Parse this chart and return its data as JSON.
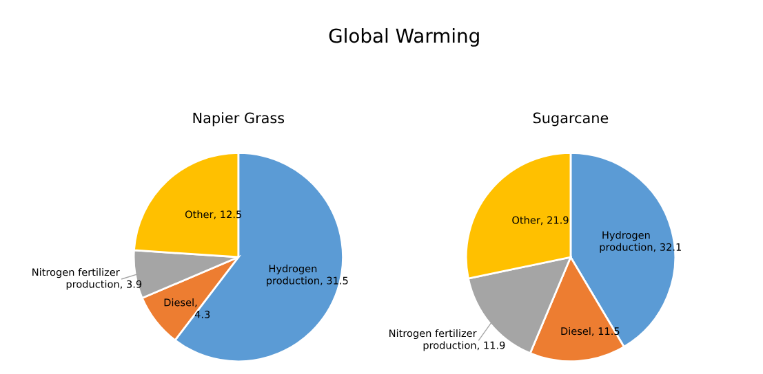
{
  "chart_data": [
    {
      "type": "pie",
      "title": "Napier Grass",
      "annotations": [
        "Global Warming"
      ],
      "categories": [
        "Hydrogen production",
        "Diesel",
        "Nitrogen fertilizer production",
        "Other"
      ],
      "values": [
        31.5,
        4.3,
        3.9,
        12.5
      ],
      "value_labels": [
        ", 31.5",
        ", 4.3",
        ", 3.9",
        ", 12.5"
      ],
      "colors": [
        "#5b9bd5",
        "#ed7d31",
        "#a5a5a5",
        "#ffc000"
      ],
      "legend": false
    },
    {
      "type": "pie",
      "title": "Sugarcane",
      "categories": [
        "Hydrogen production",
        "Diesel",
        "Nitrogen fertilizer production",
        "Other"
      ],
      "values": [
        32.1,
        11.5,
        11.9,
        21.9
      ],
      "value_labels": [
        ", 32.1",
        ", 11.5",
        ", 11.9",
        ", 21.9"
      ],
      "colors": [
        "#5b9bd5",
        "#ed7d31",
        "#a5a5a5",
        "#ffc000"
      ],
      "legend": false
    }
  ]
}
